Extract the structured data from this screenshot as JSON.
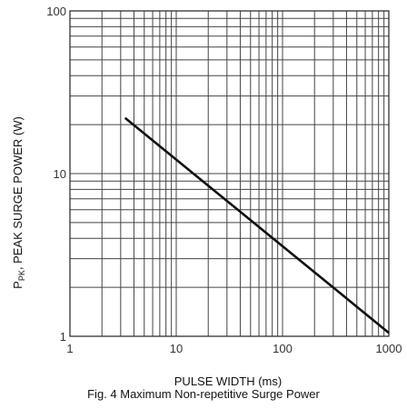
{
  "chart_data": {
    "type": "line",
    "title": "Fig. 4  Maximum Non-repetitive Surge Power",
    "xlabel": "PULSE WIDTH (ms)",
    "ylabel_main": "P",
    "ylabel_sub": "PK",
    "ylabel_rest": ", PEAK SURGE POWER (W)",
    "x_scale": "log",
    "y_scale": "log",
    "xlim": [
      1,
      1000
    ],
    "ylim": [
      1,
      100
    ],
    "x_ticks": [
      1,
      10,
      100,
      1000
    ],
    "x_tick_labels": [
      "1",
      "10",
      "100",
      "1000"
    ],
    "y_ticks": [
      1,
      10,
      100
    ],
    "y_tick_labels": [
      "1",
      "10",
      "100"
    ],
    "grid": true,
    "series": [
      {
        "x": [
          3.3,
          1000
        ],
        "y": [
          22,
          1.05
        ]
      }
    ],
    "colors": {
      "line": "#111111",
      "grid": "#444444"
    }
  }
}
